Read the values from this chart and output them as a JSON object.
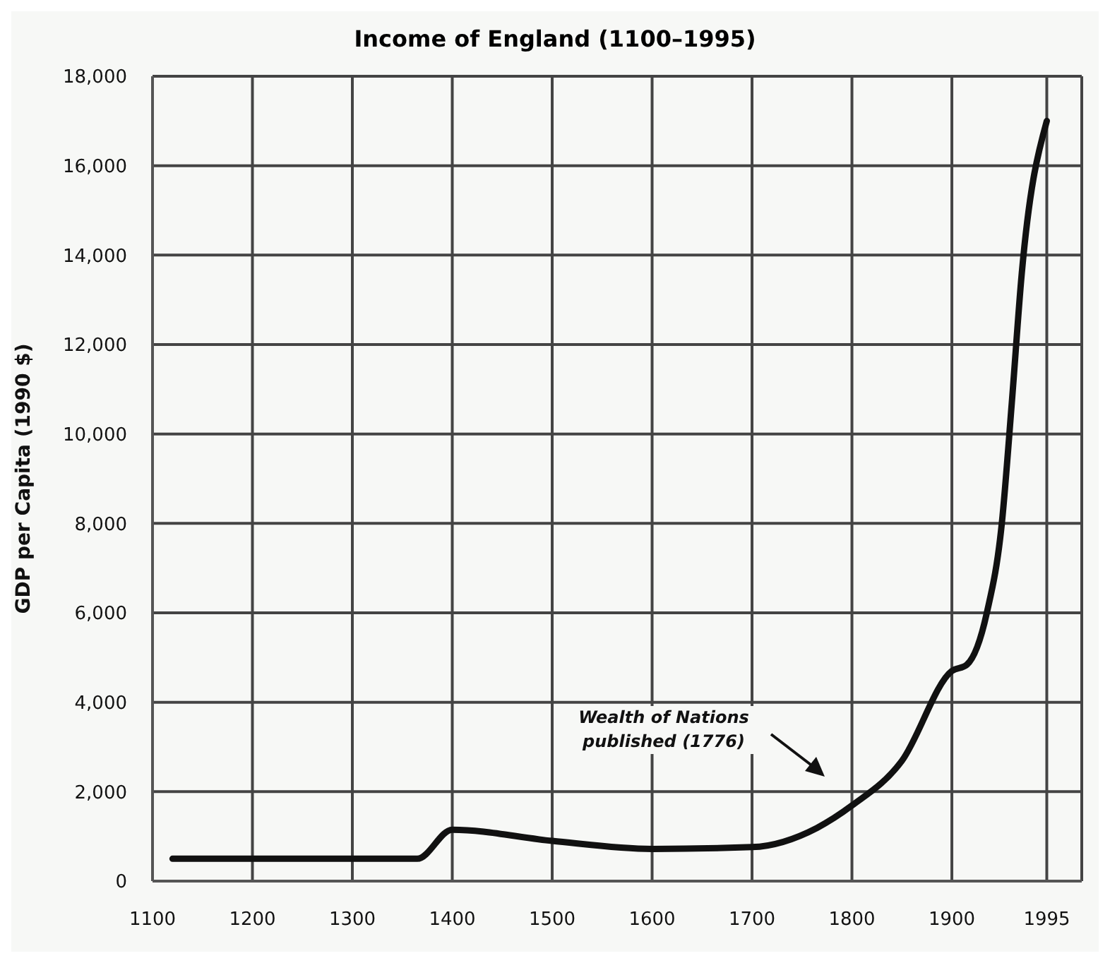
{
  "chart_data": {
    "type": "line",
    "title": "Income of England (1100–1995)",
    "ylabel": "GDP per Capita (1990 $)",
    "x": [
      1120,
      1365,
      1400,
      1500,
      1600,
      1700,
      1765,
      1800,
      1850,
      1900,
      1915,
      1935,
      1950,
      1960,
      1970,
      1995
    ],
    "series": [
      {
        "color": "#111111",
        "values": [
          500,
          500,
          1150,
          900,
          720,
          760,
          1190,
          1690,
          2690,
          4700,
          4840,
          6000,
          8000,
          10700,
          13600,
          17000
        ]
      }
    ],
    "xlim": [
      1100,
      2030
    ],
    "xticks": [
      1100,
      1200,
      1300,
      1400,
      1500,
      1600,
      1700,
      1800,
      1900,
      1995
    ],
    "ylim": [
      0,
      18000
    ],
    "yticks": [
      0,
      {
        "value": 2000,
        "label": "2,000"
      },
      {
        "value": 4000,
        "label": "4,000"
      },
      {
        "value": 6000,
        "label": "6,000"
      },
      {
        "value": 8000,
        "label": "8,000"
      },
      {
        "value": 10000,
        "label": "10,000"
      },
      {
        "value": 12000,
        "label": "12,000"
      },
      {
        "value": 14000,
        "label": "14,000"
      },
      {
        "value": 16000,
        "label": "16,000"
      },
      {
        "value": 18000,
        "label": "18,000"
      }
    ],
    "grid": true,
    "marker": "none",
    "line_style": "solid",
    "annotations": [
      "Wealth of Nations published (1776)"
    ]
  }
}
